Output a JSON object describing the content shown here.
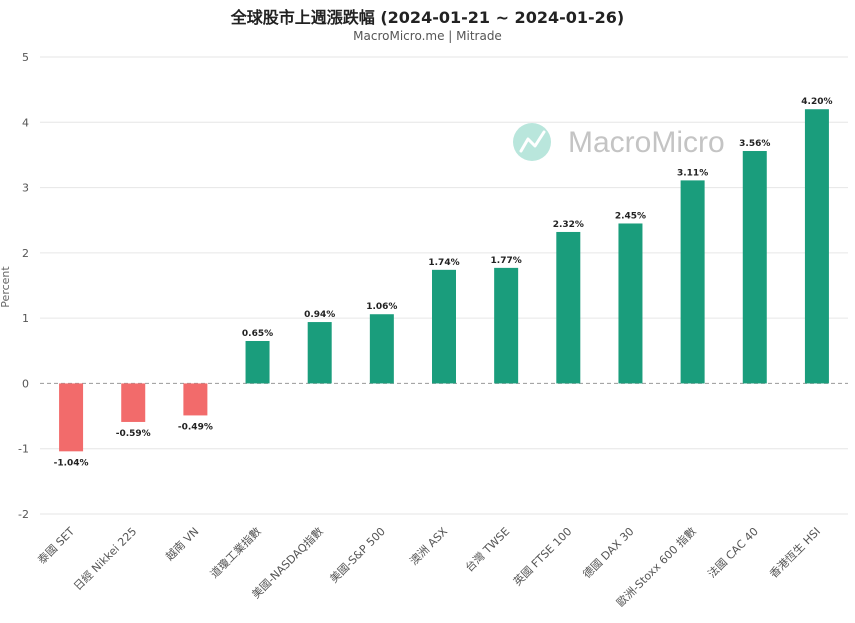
{
  "chart_data": {
    "type": "bar",
    "title": "全球股市上週漲跌幅 (2024-01-21 ~ 2024-01-26)",
    "subtitle": "MacroMicro.me | Mitrade",
    "watermark": "MacroMicro",
    "ylabel": "Percent",
    "xlabel": "",
    "ylim": [
      -2,
      5
    ],
    "yticks": [
      5,
      4,
      3,
      2,
      1,
      0,
      -1,
      -2
    ],
    "grid": true,
    "categories": [
      "泰國 SET",
      "日經 Nikkei 225",
      "越南 VN",
      "道瓊工業指數",
      "美國-NASDAQ指數",
      "美國-S&P 500",
      "澳洲 ASX",
      "台灣 TWSE",
      "英國 FTSE 100",
      "德國 DAX 30",
      "歐洲-Stoxx 600 指數",
      "法國 CAC 40",
      "香港恆生 HSI"
    ],
    "values": [
      -1.04,
      -0.59,
      -0.49,
      0.65,
      0.94,
      1.06,
      1.74,
      1.77,
      2.32,
      2.45,
      3.11,
      3.56,
      4.2
    ],
    "data_labels": [
      "-1.04%",
      "-0.59%",
      "-0.49%",
      "0.65%",
      "0.94%",
      "1.06%",
      "1.74%",
      "1.77%",
      "2.32%",
      "2.45%",
      "3.11%",
      "3.56%",
      "4.20%"
    ],
    "colors": {
      "positive": "#1a9d7c",
      "negative": "#f26b6b",
      "gridline": "#e6e6e6",
      "zeroline": "#999999",
      "watermark": "#b9e6dc"
    }
  }
}
